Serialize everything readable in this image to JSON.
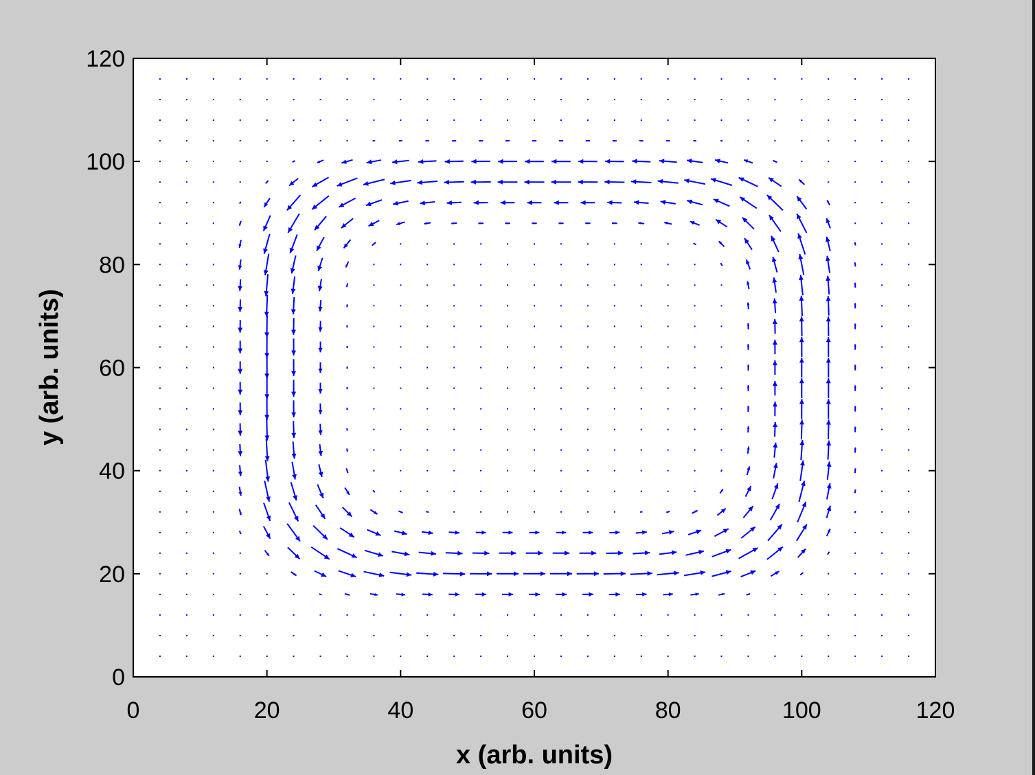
{
  "chart_data": {
    "type": "quiver",
    "title": "",
    "xlabel": "x (arb. units)",
    "ylabel": "y (arb. units)",
    "xlim": [
      0,
      120
    ],
    "ylim": [
      0,
      120
    ],
    "xticks": [
      "0",
      "20",
      "40",
      "60",
      "80",
      "100",
      "120"
    ],
    "yticks": [
      "0",
      "20",
      "40",
      "60",
      "80",
      "100",
      "120"
    ],
    "grid": false,
    "legend": "none",
    "arrow_color": "#0000ff",
    "field": {
      "grid_spacing": 4,
      "x_range": [
        4,
        116
      ],
      "y_range": [
        4,
        116
      ],
      "vortex_center": [
        61,
        59
      ],
      "ring_x_range": [
        10,
        111
      ],
      "ring_y_range": [
        10,
        109
      ],
      "rotation": "counterclockwise"
    }
  }
}
